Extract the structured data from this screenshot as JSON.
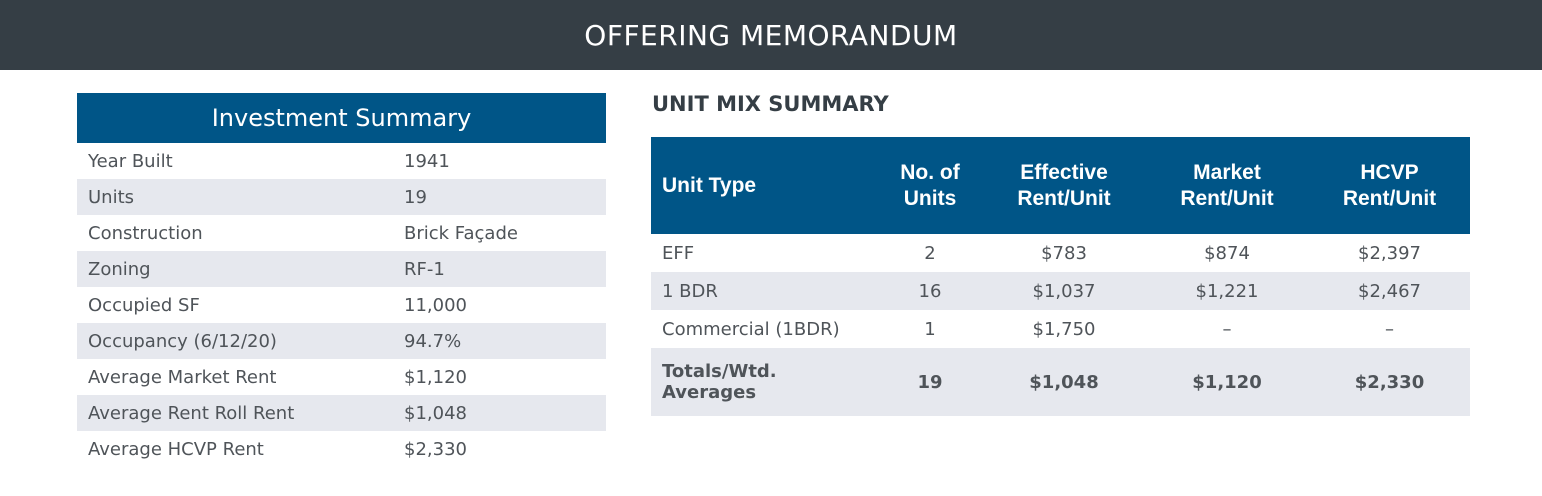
{
  "header": {
    "title": "OFFERING MEMORANDUM"
  },
  "investment_summary": {
    "title": "Investment Summary",
    "rows": [
      {
        "label": "Year Built",
        "value": "1941"
      },
      {
        "label": "Units",
        "value": "19"
      },
      {
        "label": "Construction",
        "value": "Brick Façade"
      },
      {
        "label": "Zoning",
        "value": "RF-1"
      },
      {
        "label": "Occupied SF",
        "value": "11,000"
      },
      {
        "label": "Occupancy (6/12/20)",
        "value": "94.7%"
      },
      {
        "label": "Average Market Rent",
        "value": "$1,120"
      },
      {
        "label": "Average Rent Roll Rent",
        "value": "$1,048"
      },
      {
        "label": "Average HCVP Rent",
        "value": "$2,330"
      }
    ]
  },
  "unit_mix": {
    "title": "UNIT MIX SUMMARY",
    "headers": {
      "unit_type": [
        "Unit Type"
      ],
      "no_units": [
        "No. of",
        "Units"
      ],
      "effective": [
        "Effective",
        "Rent/Unit"
      ],
      "market": [
        "Market",
        "Rent/Unit"
      ],
      "hcvp": [
        "HCVP",
        "Rent/Unit"
      ]
    },
    "rows": [
      {
        "type": "EFF",
        "units": "2",
        "effective": "$783",
        "market": "$874",
        "hcvp": "$2,397"
      },
      {
        "type": "1 BDR",
        "units": "16",
        "effective": "$1,037",
        "market": "$1,221",
        "hcvp": "$2,467"
      },
      {
        "type": "Commercial (1BDR)",
        "units": "1",
        "effective": "$1,750",
        "market": "–",
        "hcvp": "–"
      }
    ],
    "totals": {
      "label": [
        "Totals/Wtd.",
        "Averages"
      ],
      "units": "19",
      "effective": "$1,048",
      "market": "$1,120",
      "hcvp": "$2,330"
    }
  }
}
